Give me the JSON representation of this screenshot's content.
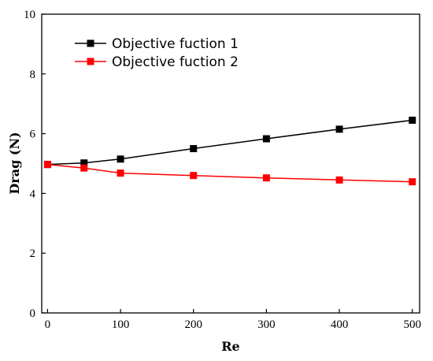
{
  "chart_data": {
    "type": "line",
    "title": "",
    "xlabel": "Re",
    "ylabel": "Drag (N)",
    "xlim": [
      -8,
      510
    ],
    "ylim": [
      0,
      10
    ],
    "x_ticks": [
      0,
      100,
      200,
      300,
      400,
      500
    ],
    "y_ticks": [
      0,
      2,
      4,
      6,
      8,
      10
    ],
    "grid": false,
    "legend": "top-left",
    "series": [
      {
        "name": "Objective fuction 1",
        "color": "#000000",
        "marker": "square",
        "x": [
          0,
          50,
          100,
          200,
          300,
          400,
          500
        ],
        "y": [
          4.97,
          5.02,
          5.15,
          5.5,
          5.83,
          6.15,
          6.45
        ]
      },
      {
        "name": "Objective fuction 2",
        "color": "#ff0000",
        "marker": "square",
        "x": [
          0,
          50,
          100,
          200,
          300,
          400,
          500
        ],
        "y": [
          4.97,
          4.85,
          4.68,
          4.6,
          4.52,
          4.45,
          4.39
        ]
      }
    ]
  }
}
